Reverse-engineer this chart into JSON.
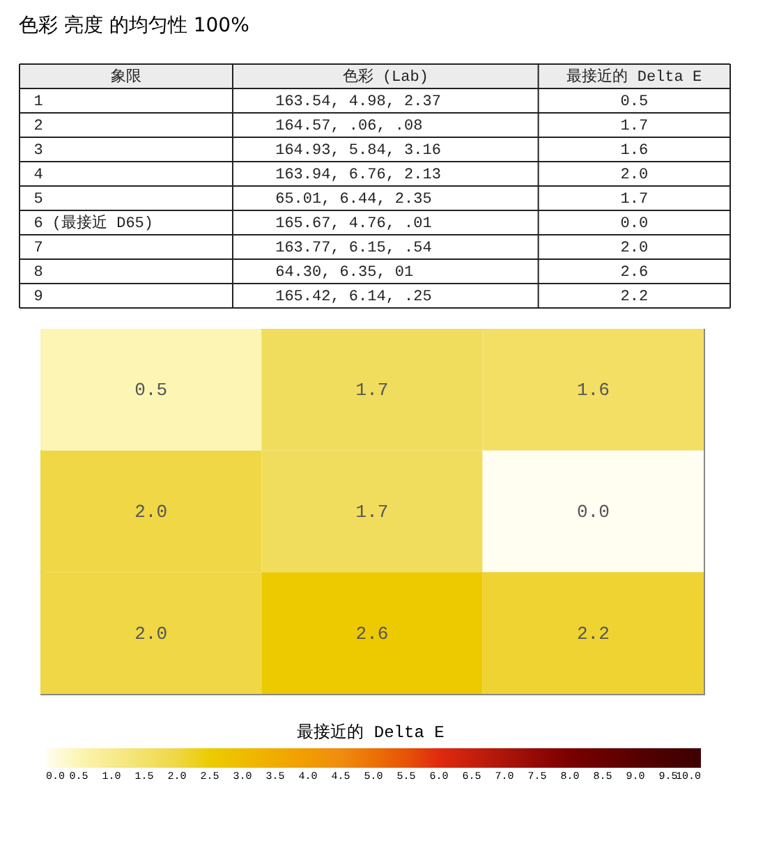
{
  "chart_data": [
    {
      "type": "other",
      "title": "色彩 亮度 的均匀性 100%",
      "categories": [
        "象限",
        "色彩 (Lab)",
        "最接近的 Delta E"
      ],
      "cell_labels": [
        [
          "1",
          "163.54,  4.98,  2.37",
          "0.5"
        ],
        [
          "2",
          "164.57,   .06,   .08",
          "1.7"
        ],
        [
          "3",
          "164.93,  5.84,  3.16",
          "1.6"
        ],
        [
          "4",
          "163.94,  6.76,  2.13",
          "2.0"
        ],
        [
          "5",
          " 65.01,  6.44,  2.35",
          "1.7"
        ],
        [
          "6 (最接近 D65)",
          "165.67,  4.76,   .01",
          "0.0"
        ],
        [
          "7",
          "163.77,  6.15,   .54",
          "2.0"
        ],
        [
          "8",
          " 64.30,  6.35,    01",
          "2.6"
        ],
        [
          "9",
          "165.42,  6.14,   .25",
          "2.2"
        ]
      ]
    },
    {
      "type": "heatmap",
      "categories": [
        null,
        null,
        null
      ],
      "y_categories": [
        null,
        null,
        null
      ],
      "cells": [
        [
          0.5,
          1.7,
          1.6
        ],
        [
          2.0,
          1.7,
          0.0
        ],
        [
          2.0,
          2.6,
          2.2
        ]
      ],
      "cell_labels": [
        [
          "0.5",
          "1.7",
          "1.6"
        ],
        [
          "2.0",
          "1.7",
          "0.0"
        ],
        [
          "2.0",
          "2.6",
          "2.2"
        ]
      ],
      "clabel": "最接近的 Delta E",
      "clim": [
        0,
        10
      ],
      "cticks": [
        {
          "value": 0,
          "label": "0.0"
        },
        0.5,
        {
          "value": 1,
          "label": "1.0"
        },
        1.5,
        {
          "value": 2,
          "label": "2.0"
        },
        2.5,
        {
          "value": 3,
          "label": "3.0"
        },
        3.5,
        {
          "value": 4,
          "label": "4.0"
        },
        4.5,
        {
          "value": 5,
          "label": "5.0"
        },
        5.5,
        {
          "value": 6,
          "label": "6.0"
        },
        6.5,
        {
          "value": 7,
          "label": "7.0"
        },
        7.5,
        {
          "value": 8,
          "label": "8.0"
        },
        8.5,
        {
          "value": 9,
          "label": "9.0"
        },
        9.5,
        {
          "value": 10,
          "label": "10.0"
        }
      ]
    }
  ]
}
